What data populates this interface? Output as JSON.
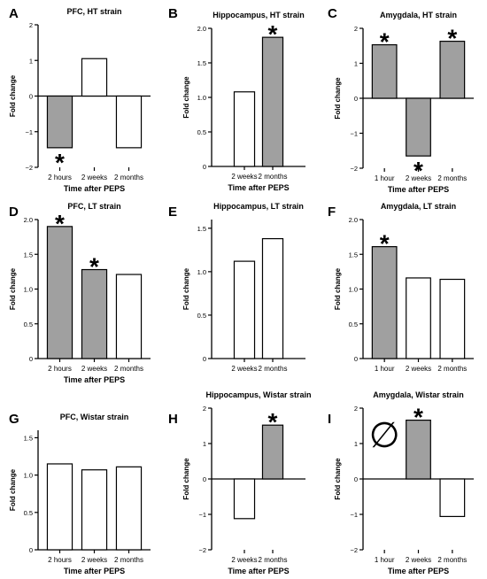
{
  "colors": {
    "significant": "#a0a0a0",
    "nonsignificant": "#ffffff",
    "stroke": "#000000"
  },
  "chart_data": [
    {
      "panel": "A",
      "type": "bar",
      "title": "PFC, HT strain",
      "categories": [
        "2 hours",
        "2 weeks",
        "2 months"
      ],
      "values": [
        -1.45,
        1.05,
        -1.45
      ],
      "significant": [
        true,
        false,
        false
      ],
      "ylim": [
        -2,
        2
      ],
      "yticks": [
        -2,
        -1,
        0,
        1,
        2
      ],
      "ytick_labels": [
        "−2",
        "−1",
        "0",
        "1",
        "2"
      ],
      "ylabel": "Fold change",
      "xlabel": "Time after PEPS",
      "star_label": "*",
      "null_symbol": ""
    },
    {
      "panel": "B",
      "type": "bar",
      "title": "Hippocampus, HT strain",
      "categories": [
        "2 weeks",
        "2 months"
      ],
      "values": [
        1.08,
        1.87
      ],
      "significant": [
        false,
        true
      ],
      "ylim": [
        0,
        2
      ],
      "yticks": [
        0,
        0.5,
        1,
        1.5,
        2
      ],
      "ytick_labels": [
        "0",
        "0.5",
        "1.0",
        "1.5",
        "2.0"
      ],
      "ylabel": "Fold change",
      "xlabel": "Time after PEPS",
      "star_label": "*",
      "null_symbol": ""
    },
    {
      "panel": "C",
      "type": "bar",
      "title": "Amygdala, HT strain",
      "categories": [
        "1 hour",
        "2 weeks",
        "2 months"
      ],
      "values": [
        1.53,
        -1.65,
        1.63
      ],
      "significant": [
        true,
        true,
        true
      ],
      "ylim": [
        -2,
        2
      ],
      "yticks": [
        -2,
        -1,
        0,
        1,
        2
      ],
      "ytick_labels": [
        "−2",
        "−1",
        "0",
        "1",
        "2"
      ],
      "ylabel": "Fold change",
      "xlabel": "Time after PEPS",
      "star_label": "*",
      "null_symbol": ""
    },
    {
      "panel": "D",
      "type": "bar",
      "title": "PFC, LT strain",
      "categories": [
        "2 hours",
        "2 weeks",
        "2 months"
      ],
      "values": [
        1.9,
        1.28,
        1.21
      ],
      "significant": [
        true,
        true,
        false
      ],
      "ylim": [
        0,
        2
      ],
      "yticks": [
        0,
        0.5,
        1,
        1.5,
        2
      ],
      "ytick_labels": [
        "0",
        "0.5",
        "1.0",
        "1.5",
        "2.0"
      ],
      "ylabel": "Fold change",
      "xlabel": "Time after PEPS",
      "star_label": "*",
      "null_symbol": ""
    },
    {
      "panel": "E",
      "type": "bar",
      "title": "Hippocampus, LT strain",
      "categories": [
        "2 weeks",
        "2 months"
      ],
      "values": [
        1.12,
        1.38
      ],
      "significant": [
        false,
        false
      ],
      "ylim": [
        0,
        1.6
      ],
      "yticks": [
        0,
        0.5,
        1,
        1.5
      ],
      "ytick_labels": [
        "0",
        "0.5",
        "1.0",
        "1.5"
      ],
      "ylabel": "Fold change",
      "xlabel": "",
      "star_label": "*",
      "null_symbol": ""
    },
    {
      "panel": "F",
      "type": "bar",
      "title": "Amygdala, LT strain",
      "categories": [
        "1 hour",
        "2 weeks",
        "2 months"
      ],
      "values": [
        1.61,
        1.16,
        1.14
      ],
      "significant": [
        true,
        false,
        false
      ],
      "ylim": [
        0,
        2
      ],
      "yticks": [
        0,
        0.5,
        1,
        1.5,
        2
      ],
      "ytick_labels": [
        "0",
        "0.5",
        "1.0",
        "1.5",
        "2.0"
      ],
      "ylabel": "Fold change",
      "xlabel": "",
      "star_label": "*",
      "null_symbol": ""
    },
    {
      "panel": "G",
      "type": "bar",
      "title": "PFC, Wistar strain",
      "categories": [
        "2 hours",
        "2 weeks",
        "2 months"
      ],
      "values": [
        1.15,
        1.07,
        1.11
      ],
      "significant": [
        false,
        false,
        false
      ],
      "ylim": [
        0,
        1.6
      ],
      "yticks": [
        0,
        0.5,
        1,
        1.5
      ],
      "ytick_labels": [
        "0",
        "0.5",
        "1.0",
        "1.5"
      ],
      "ylabel": "Fold change",
      "xlabel": "Time after PEPS",
      "star_label": "*",
      "null_symbol": ""
    },
    {
      "panel": "H",
      "type": "bar",
      "title": "Hippocampus, Wistar strain",
      "categories": [
        "2 weeks",
        "2 months"
      ],
      "values": [
        -1.12,
        1.52
      ],
      "significant": [
        false,
        true
      ],
      "ylim": [
        -2,
        2
      ],
      "yticks": [
        -2,
        -1,
        0,
        1,
        2
      ],
      "ytick_labels": [
        "−2",
        "−1",
        "0",
        "1",
        "2"
      ],
      "ylabel": "Fold change",
      "xlabel": "Time after PEPS",
      "star_label": "*",
      "null_symbol": ""
    },
    {
      "panel": "I",
      "type": "bar",
      "title": "Amygdala, Wistar strain",
      "categories": [
        "1 hour",
        "2 weeks",
        "2 months"
      ],
      "values": [
        0,
        1.66,
        -1.06
      ],
      "significant": [
        false,
        true,
        false
      ],
      "ylim": [
        -2,
        2
      ],
      "yticks": [
        -2,
        -1,
        0,
        1,
        2
      ],
      "ytick_labels": [
        "−2",
        "−1",
        "0",
        "1",
        "2"
      ],
      "ylabel": "Fold change",
      "xlabel": "Time after PEPS",
      "star_label": "*",
      "null_symbol": "∅"
    }
  ]
}
